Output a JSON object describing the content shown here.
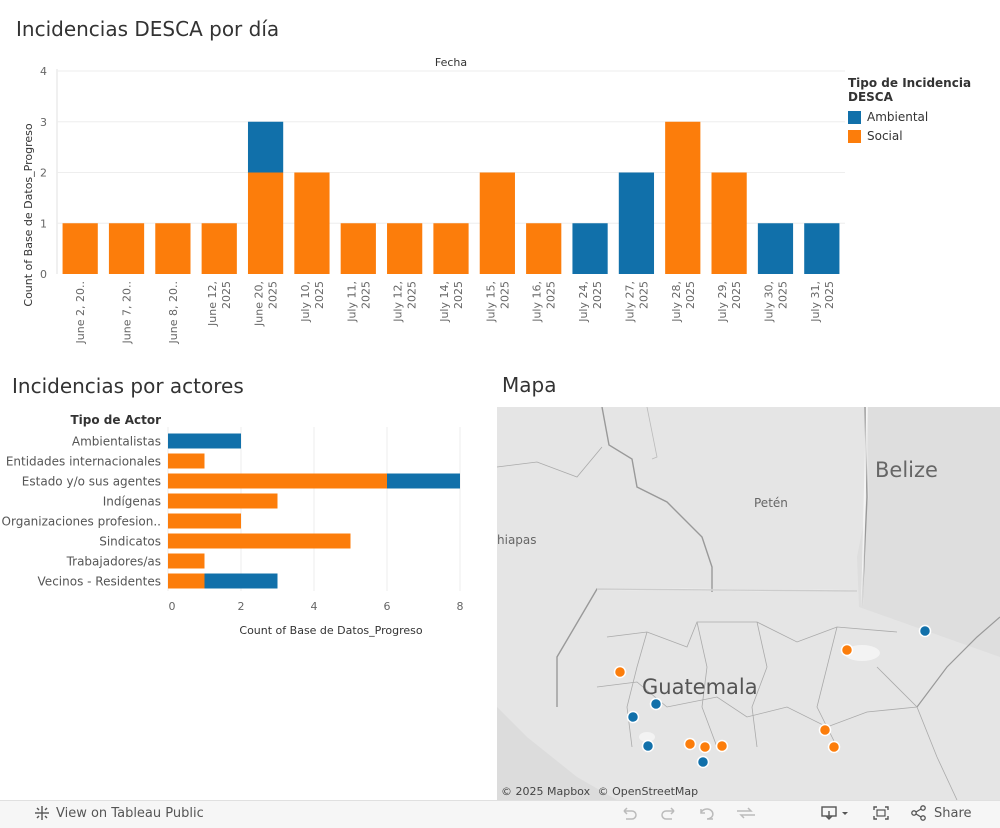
{
  "titles": {
    "daily": "Incidencias DESCA por día",
    "actors": "Incidencias por actores",
    "map": "Mapa"
  },
  "legend": {
    "title": "Tipo de Incidencia DESCA",
    "items": [
      {
        "label": "Ambiental",
        "color": "#1170aa"
      },
      {
        "label": "Social",
        "color": "#fc7d0b"
      }
    ]
  },
  "chart_data": [
    {
      "type": "bar",
      "stacked": true,
      "title": "Incidencias DESCA por día",
      "xlabel": "Fecha",
      "ylabel": "Count of Base de Datos_Progreso",
      "ylim": [
        0,
        4
      ],
      "yticks": [
        0,
        1,
        2,
        3,
        4
      ],
      "categories": [
        [
          "June 2, 20.."
        ],
        [
          "June 7, 20.."
        ],
        [
          "June 8, 20.."
        ],
        [
          "June 12,",
          "2025"
        ],
        [
          "June 20,",
          "2025"
        ],
        [
          "July 10,",
          "2025"
        ],
        [
          "July 11,",
          "2025"
        ],
        [
          "July 12,",
          "2025"
        ],
        [
          "July 14,",
          "2025"
        ],
        [
          "July 15,",
          "2025"
        ],
        [
          "July 16,",
          "2025"
        ],
        [
          "July 24,",
          "2025"
        ],
        [
          "July 27,",
          "2025"
        ],
        [
          "July 28,",
          "2025"
        ],
        [
          "July 29,",
          "2025"
        ],
        [
          "July 30,",
          "2025"
        ],
        [
          "July 31,",
          "2025"
        ]
      ],
      "series": [
        {
          "name": "Social",
          "color": "#fc7d0b",
          "values": [
            1,
            1,
            1,
            1,
            2,
            2,
            1,
            1,
            1,
            2,
            1,
            0,
            0,
            3,
            2,
            0,
            0
          ]
        },
        {
          "name": "Ambiental",
          "color": "#1170aa",
          "values": [
            0,
            0,
            0,
            0,
            1,
            0,
            0,
            0,
            0,
            0,
            0,
            1,
            2,
            0,
            0,
            1,
            1
          ]
        }
      ]
    },
    {
      "type": "bar",
      "orientation": "horizontal",
      "stacked": true,
      "title": "Incidencias por actores",
      "category_header": "Tipo de Actor",
      "xlabel": "Count of Base de Datos_Progreso",
      "xlim": [
        0,
        9
      ],
      "xticks": [
        0,
        2,
        4,
        6,
        8
      ],
      "categories": [
        "Ambientalistas",
        "Entidades internacionales",
        "Estado y/o sus agentes",
        "Indígenas",
        "Organizaciones profesion..",
        "Sindicatos",
        "Trabajadores/as",
        "Vecinos - Residentes"
      ],
      "series": [
        {
          "name": "Social",
          "color": "#fc7d0b",
          "values": [
            0,
            1,
            6,
            3,
            2,
            5,
            1,
            1
          ]
        },
        {
          "name": "Ambiental",
          "color": "#1170aa",
          "values": [
            2,
            0,
            2,
            0,
            0,
            0,
            0,
            2
          ]
        }
      ]
    }
  ],
  "map": {
    "labels": {
      "belize": "Belize",
      "peten": "Petén",
      "chiapas": "hiapas",
      "guatemala": "Guatemala"
    },
    "attribution": [
      "© 2025 Mapbox",
      "© OpenStreetMap"
    ],
    "points": [
      {
        "type": "Ambiental",
        "color": "#1170aa"
      },
      {
        "type": "Social",
        "color": "#fc7d0b"
      },
      {
        "type": "Social",
        "color": "#fc7d0b"
      },
      {
        "type": "Ambiental",
        "color": "#1170aa"
      },
      {
        "type": "Ambiental",
        "color": "#1170aa"
      },
      {
        "type": "Ambiental",
        "color": "#1170aa"
      },
      {
        "type": "Social",
        "color": "#fc7d0b"
      },
      {
        "type": "Social",
        "color": "#fc7d0b"
      },
      {
        "type": "Social",
        "color": "#fc7d0b"
      },
      {
        "type": "Ambiental",
        "color": "#1170aa"
      },
      {
        "type": "Social",
        "color": "#fc7d0b"
      },
      {
        "type": "Social",
        "color": "#fc7d0b"
      }
    ]
  },
  "toolbar": {
    "view_label": "View on Tableau Public",
    "share_label": "Share",
    "icons": [
      "tableau-logo-icon",
      "undo-icon",
      "redo-icon",
      "revert-icon",
      "refresh-icon",
      "download-icon",
      "fullscreen-icon",
      "share-icon"
    ]
  }
}
